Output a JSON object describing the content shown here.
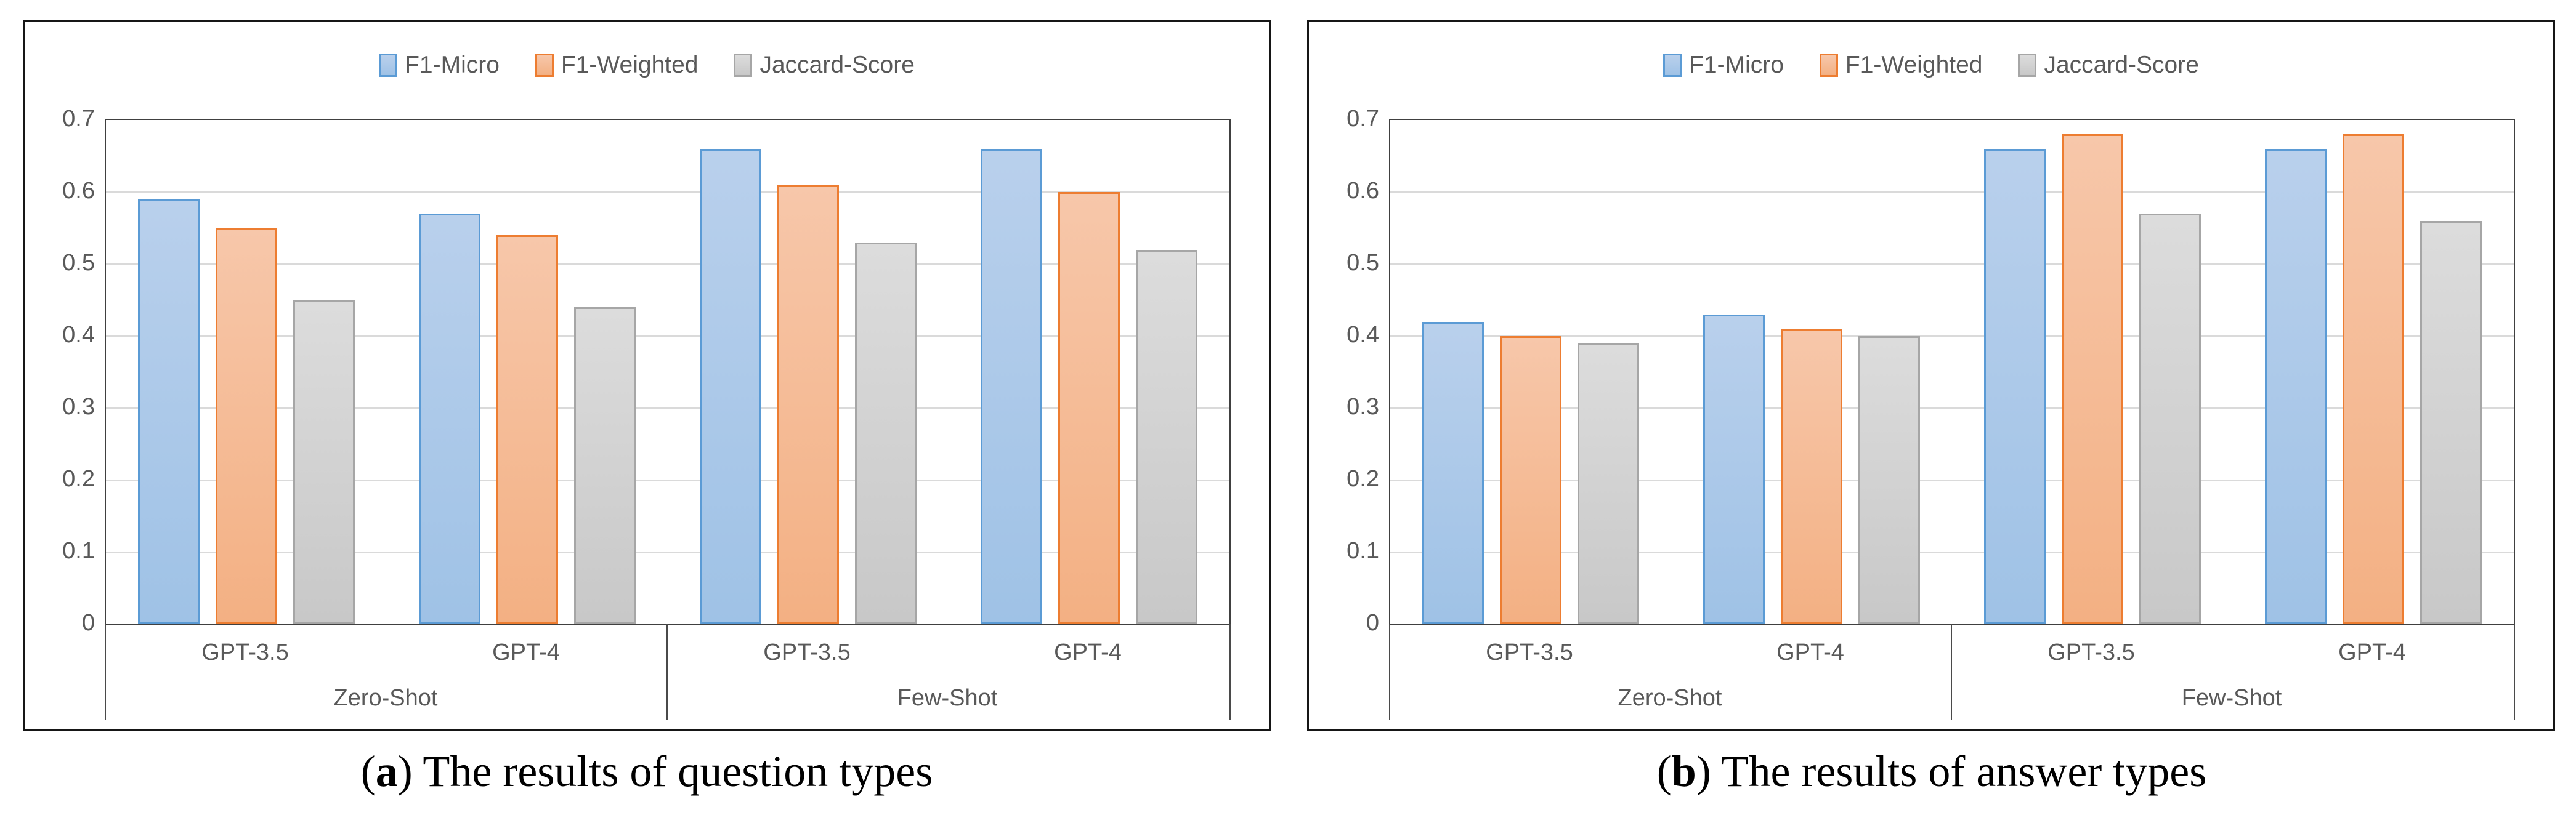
{
  "figure": {
    "background": "#ffffff",
    "text_color": "#595959",
    "gridline_color": "#dadada",
    "axis_color": "#404040",
    "panel_border_color": "#161616"
  },
  "series_styles": [
    {
      "name": "F1-Micro",
      "border": "#5B9BD5",
      "fill_top": "#B9D0EC",
      "fill_bottom": "#9FC2E6"
    },
    {
      "name": "F1-Weighted",
      "border": "#ED7D31",
      "fill_top": "#F7C7AA",
      "fill_bottom": "#F3B083"
    },
    {
      "name": "Jaccard-Score",
      "border": "#A6A6A6",
      "fill_top": "#DCDCDC",
      "fill_bottom": "#C8C8C8"
    }
  ],
  "chart_data": [
    {
      "id": "a",
      "type": "bar",
      "title": "(a) The results of question types",
      "title_parts": {
        "open": "(",
        "letter": "a",
        "close": ")",
        "text": "The results of question types"
      },
      "legend_entries": [
        "F1-Micro",
        "F1-Weighted",
        "Jaccard-Score"
      ],
      "legend_position": "top-center",
      "categories": [
        "GPT-3.5",
        "GPT-4",
        "GPT-3.5",
        "GPT-4"
      ],
      "category_groups": [
        {
          "label": "Zero-Shot",
          "span": [
            0,
            1
          ]
        },
        {
          "label": "Few-Shot",
          "span": [
            2,
            3
          ]
        }
      ],
      "series": [
        {
          "name": "F1-Micro",
          "values": [
            0.59,
            0.57,
            0.66,
            0.66
          ]
        },
        {
          "name": "F1-Weighted",
          "values": [
            0.55,
            0.54,
            0.61,
            0.6
          ]
        },
        {
          "name": "Jaccard-Score",
          "values": [
            0.45,
            0.44,
            0.53,
            0.52
          ]
        }
      ],
      "xlabel": "",
      "ylabel": "",
      "ylim": [
        0,
        0.7
      ],
      "ytick_step": 0.1,
      "ytick_labels": [
        "0",
        "0.1",
        "0.2",
        "0.3",
        "0.4",
        "0.5",
        "0.6",
        "0.7"
      ],
      "grid": true
    },
    {
      "id": "b",
      "type": "bar",
      "title": "(b) The results of answer types",
      "title_parts": {
        "open": "(",
        "letter": "b",
        "close": ")",
        "text": "The results of answer types"
      },
      "legend_entries": [
        "F1-Micro",
        "F1-Weighted",
        "Jaccard-Score"
      ],
      "legend_position": "top-center",
      "categories": [
        "GPT-3.5",
        "GPT-4",
        "GPT-3.5",
        "GPT-4"
      ],
      "category_groups": [
        {
          "label": "Zero-Shot",
          "span": [
            0,
            1
          ]
        },
        {
          "label": "Few-Shot",
          "span": [
            2,
            3
          ]
        }
      ],
      "series": [
        {
          "name": "F1-Micro",
          "values": [
            0.42,
            0.43,
            0.66,
            0.66
          ]
        },
        {
          "name": "F1-Weighted",
          "values": [
            0.4,
            0.41,
            0.68,
            0.68
          ]
        },
        {
          "name": "Jaccard-Score",
          "values": [
            0.39,
            0.4,
            0.57,
            0.56
          ]
        }
      ],
      "xlabel": "",
      "ylabel": "",
      "ylim": [
        0,
        0.7
      ],
      "ytick_step": 0.1,
      "ytick_labels": [
        "0",
        "0.1",
        "0.2",
        "0.3",
        "0.4",
        "0.5",
        "0.6",
        "0.7"
      ],
      "grid": true
    }
  ]
}
